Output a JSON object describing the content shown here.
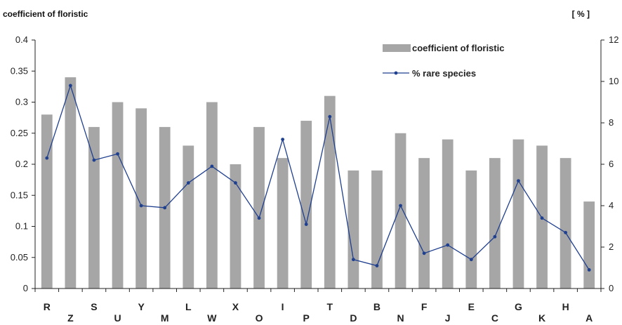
{
  "chart_data": {
    "type": "bar+line",
    "y_left_label": "coefficient of floristic",
    "y_right_label": "[ % ]",
    "categories": [
      "R",
      "Z",
      "S",
      "U",
      "Y",
      "M",
      "L",
      "W",
      "X",
      "O",
      "I",
      "P",
      "T",
      "D",
      "B",
      "N",
      "F",
      "J",
      "E",
      "C",
      "G",
      "K",
      "H",
      "A"
    ],
    "series": [
      {
        "name": "coefficient of floristic",
        "type": "bar",
        "axis": "left",
        "color": "#a6a6a6",
        "values": [
          0.28,
          0.34,
          0.26,
          0.3,
          0.29,
          0.26,
          0.23,
          0.3,
          0.2,
          0.26,
          0.21,
          0.27,
          0.31,
          0.19,
          0.19,
          0.25,
          0.21,
          0.24,
          0.19,
          0.21,
          0.24,
          0.23,
          0.21,
          0.14
        ]
      },
      {
        "name": "% rare species",
        "type": "line",
        "axis": "right",
        "color": "#1f3f8f",
        "values": [
          6.3,
          9.8,
          6.2,
          6.5,
          4.0,
          3.9,
          5.1,
          5.9,
          5.1,
          3.4,
          7.2,
          3.1,
          8.3,
          1.4,
          1.1,
          4.0,
          1.7,
          2.1,
          1.4,
          2.5,
          5.2,
          3.4,
          2.7,
          0.9
        ]
      }
    ],
    "y_left_lim": [
      0,
      0.4
    ],
    "y_left_ticks": [
      "0",
      "0.05",
      "0.1",
      "0.15",
      "0.2",
      "0.25",
      "0.3",
      "0.35",
      "0.4"
    ],
    "y_right_lim": [
      0,
      12
    ],
    "y_right_ticks": [
      "0",
      "2",
      "4",
      "6",
      "8",
      "10",
      "12"
    ],
    "legend_position": "top-right",
    "grid": false
  }
}
